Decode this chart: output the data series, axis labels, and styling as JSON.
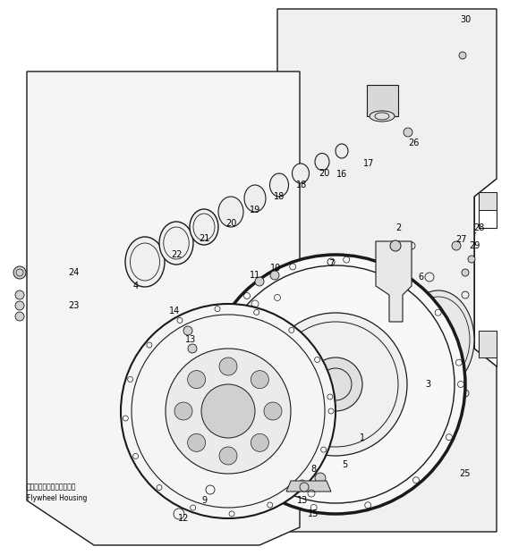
{
  "bg_color": "#ffffff",
  "line_color": "#1a1a1a",
  "fig_width": 5.7,
  "fig_height": 6.21,
  "dpi": 100,
  "flywheel_housing_text_ja": "フライホイールハウジング",
  "flywheel_housing_text_en": "Flywheel Housing"
}
